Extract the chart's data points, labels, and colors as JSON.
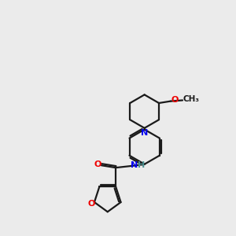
{
  "bg_color": "#ebebeb",
  "bond_color": "#1a1a1a",
  "N_color": "#0000ee",
  "O_color": "#ee0000",
  "NH_color": "#4a9090",
  "font_size": 8.0,
  "bond_width": 1.6,
  "fig_w": 3.0,
  "fig_h": 3.0,
  "dpi": 100,
  "xlim": [
    0,
    10
  ],
  "ylim": [
    0,
    10
  ]
}
